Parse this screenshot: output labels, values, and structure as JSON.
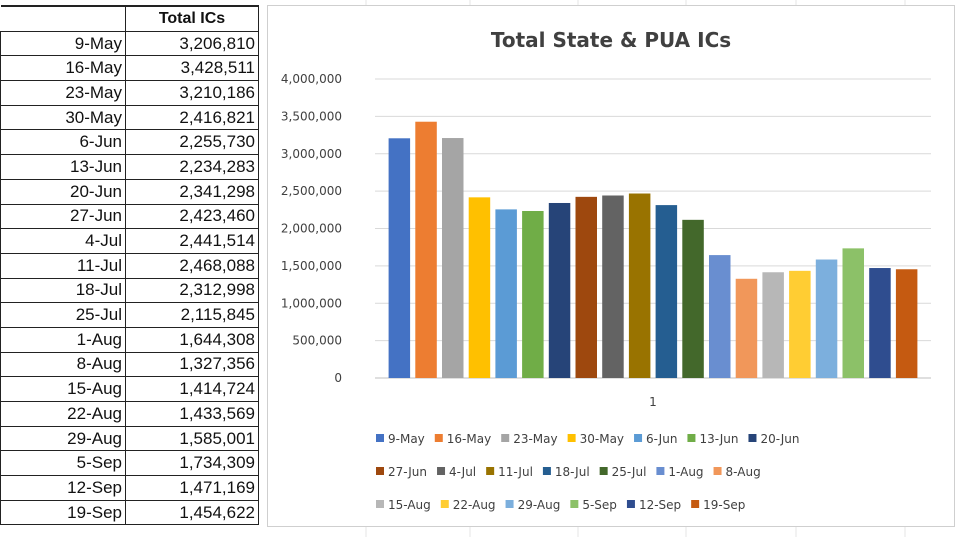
{
  "table": {
    "header": "Total ICs",
    "rows": [
      {
        "label": "9-May",
        "value": "3,206,810"
      },
      {
        "label": "16-May",
        "value": "3,428,511"
      },
      {
        "label": "23-May",
        "value": "3,210,186"
      },
      {
        "label": "30-May",
        "value": "2,416,821"
      },
      {
        "label": "6-Jun",
        "value": "2,255,730"
      },
      {
        "label": "13-Jun",
        "value": "2,234,283"
      },
      {
        "label": "20-Jun",
        "value": "2,341,298"
      },
      {
        "label": "27-Jun",
        "value": "2,423,460"
      },
      {
        "label": "4-Jul",
        "value": "2,441,514"
      },
      {
        "label": "11-Jul",
        "value": "2,468,088"
      },
      {
        "label": "18-Jul",
        "value": "2,312,998"
      },
      {
        "label": "25-Jul",
        "value": "2,115,845"
      },
      {
        "label": "1-Aug",
        "value": "1,644,308"
      },
      {
        "label": "8-Aug",
        "value": "1,327,356"
      },
      {
        "label": "15-Aug",
        "value": "1,414,724"
      },
      {
        "label": "22-Aug",
        "value": "1,433,569"
      },
      {
        "label": "29-Aug",
        "value": "1,585,001"
      },
      {
        "label": "5-Sep",
        "value": "1,734,309"
      },
      {
        "label": "12-Sep",
        "value": "1,471,169"
      },
      {
        "label": "19-Sep",
        "value": "1,454,622"
      }
    ]
  },
  "chart_data": {
    "type": "bar",
    "title": "Total State & PUA ICs",
    "categories": [
      "1"
    ],
    "xlabel": "",
    "ylabel": "",
    "ylim": [
      0,
      4000000
    ],
    "yticks": [
      0,
      500000,
      1000000,
      1500000,
      2000000,
      2500000,
      3000000,
      3500000,
      4000000
    ],
    "ytick_labels": [
      "0",
      "500,000",
      "1,000,000",
      "1,500,000",
      "2,000,000",
      "2,500,000",
      "3,000,000",
      "3,500,000",
      "4,000,000"
    ],
    "grid": true,
    "legend_position": "bottom",
    "series": [
      {
        "name": "9-May",
        "values": [
          3206810
        ],
        "color": "#4472C4"
      },
      {
        "name": "16-May",
        "values": [
          3428511
        ],
        "color": "#ED7D31"
      },
      {
        "name": "23-May",
        "values": [
          3210186
        ],
        "color": "#A5A5A5"
      },
      {
        "name": "30-May",
        "values": [
          2416821
        ],
        "color": "#FFC000"
      },
      {
        "name": "6-Jun",
        "values": [
          2255730
        ],
        "color": "#5B9BD5"
      },
      {
        "name": "13-Jun",
        "values": [
          2234283
        ],
        "color": "#70AD47"
      },
      {
        "name": "20-Jun",
        "values": [
          2341298
        ],
        "color": "#264478"
      },
      {
        "name": "27-Jun",
        "values": [
          2423460
        ],
        "color": "#9E480E"
      },
      {
        "name": "4-Jul",
        "values": [
          2441514
        ],
        "color": "#636363"
      },
      {
        "name": "11-Jul",
        "values": [
          2468088
        ],
        "color": "#997300"
      },
      {
        "name": "18-Jul",
        "values": [
          2312998
        ],
        "color": "#255E91"
      },
      {
        "name": "25-Jul",
        "values": [
          2115845
        ],
        "color": "#43682B"
      },
      {
        "name": "1-Aug",
        "values": [
          1644308
        ],
        "color": "#698ED0"
      },
      {
        "name": "8-Aug",
        "values": [
          1327356
        ],
        "color": "#F1975A"
      },
      {
        "name": "15-Aug",
        "values": [
          1414724
        ],
        "color": "#B7B7B7"
      },
      {
        "name": "22-Aug",
        "values": [
          1433569
        ],
        "color": "#FFCD33"
      },
      {
        "name": "29-Aug",
        "values": [
          1585001
        ],
        "color": "#7CAFDD"
      },
      {
        "name": "5-Sep",
        "values": [
          1734309
        ],
        "color": "#8CC168"
      },
      {
        "name": "12-Sep",
        "values": [
          1471169
        ],
        "color": "#2F4D8F"
      },
      {
        "name": "19-Sep",
        "values": [
          1454622
        ],
        "color": "#C55A11"
      }
    ]
  }
}
